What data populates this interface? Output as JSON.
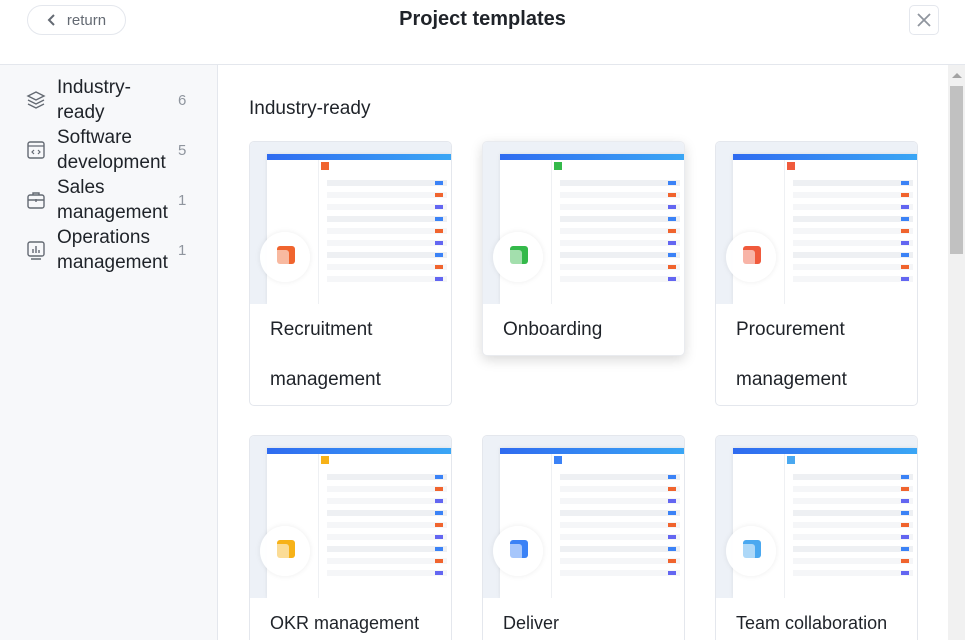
{
  "header": {
    "return_label": "return",
    "title": "Project templates",
    "close_icon": "close-icon"
  },
  "sidebar": {
    "items": [
      {
        "label": "Industry-ready",
        "count": "6",
        "icon": "layers-icon"
      },
      {
        "label": "Software development",
        "count": "5",
        "icon": "code-window-icon"
      },
      {
        "label": "Sales management",
        "count": "1",
        "icon": "briefcase-icon"
      },
      {
        "label": "Operations management",
        "count": "1",
        "icon": "bar-chart-icon"
      }
    ]
  },
  "main": {
    "section_title": "Industry-ready",
    "templates": [
      {
        "name": "Recruitment management",
        "color": "#f0642e"
      },
      {
        "name": "Onboarding",
        "color": "#34b94a"
      },
      {
        "name": "Procurement management",
        "color": "#f05a3c"
      },
      {
        "name": "OKR management",
        "color": "#f7b218"
      },
      {
        "name": "Deliver",
        "color": "#3b82f6"
      },
      {
        "name": "Team collaboration",
        "color": "#4aa8f0"
      }
    ]
  }
}
